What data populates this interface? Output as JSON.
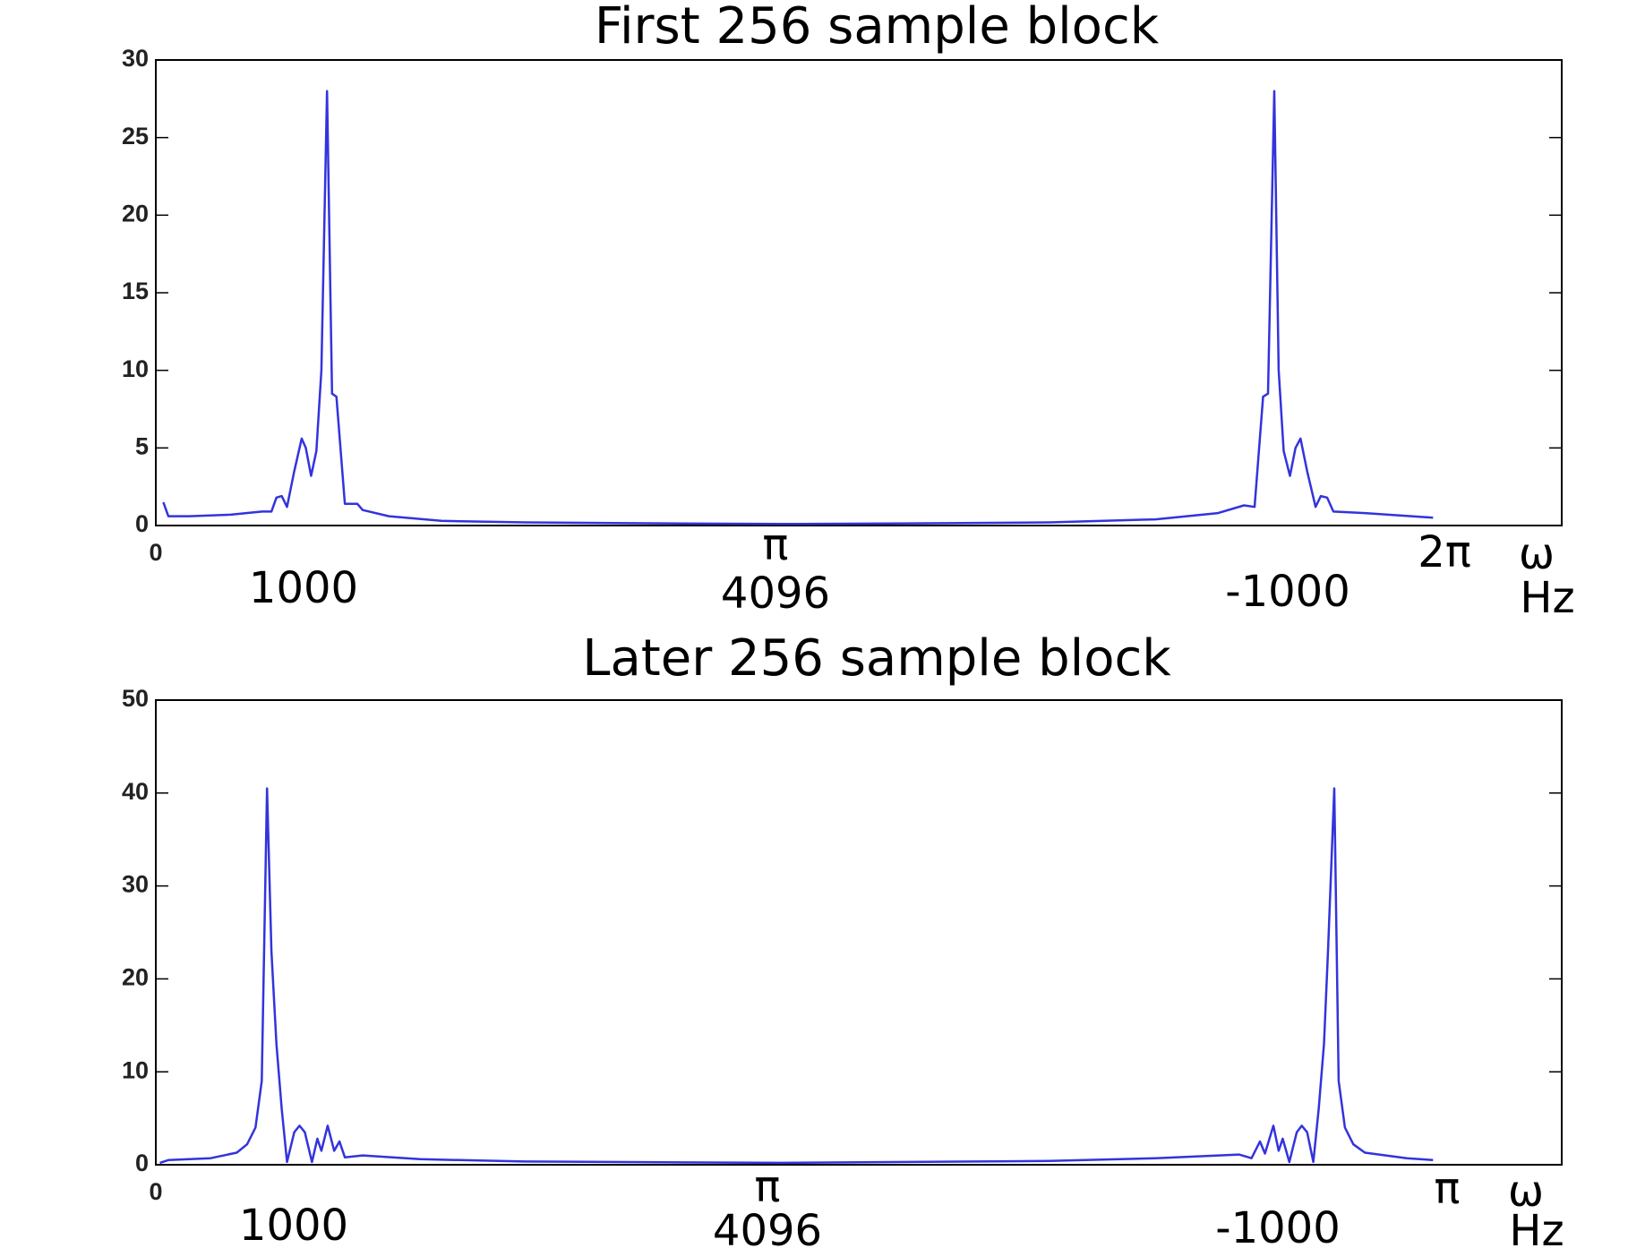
{
  "chart_data": [
    {
      "type": "line",
      "title": "First 256 sample block",
      "color": "#3333dd",
      "xlim": [
        0,
        450
      ],
      "xticks": [
        0
      ],
      "ylim": [
        0,
        30
      ],
      "yticks": [
        0,
        5,
        10,
        15,
        20,
        25,
        30
      ],
      "x": [
        2.4,
        4,
        10.7,
        24,
        34,
        37,
        38.6,
        40.3,
        42,
        44.3,
        46.7,
        48,
        49.7,
        51.4,
        53,
        54.8,
        56.4,
        57.8,
        60.5,
        64.5,
        66.2,
        74.6,
        91.4,
        118,
        152,
        200,
        252.6,
        286,
        320,
        340,
        348.3,
        351.7,
        354.4,
        356,
        358,
        359.4,
        361,
        363,
        364.8,
        366.4,
        368.5,
        371.2,
        372.9,
        374.9,
        376.9,
        387,
        408.8
      ],
      "values": [
        1.5,
        0.6,
        0.6,
        0.7,
        0.9,
        0.9,
        1.8,
        1.9,
        1.2,
        3.5,
        5.6,
        5.0,
        3.2,
        4.8,
        10,
        28,
        8.5,
        8.3,
        1.4,
        1.4,
        1.0,
        0.6,
        0.3,
        0.2,
        0.15,
        0.1,
        0.15,
        0.2,
        0.4,
        0.8,
        1.3,
        1.2,
        8.3,
        8.5,
        28,
        10,
        4.8,
        3.2,
        5.0,
        5.6,
        3.5,
        1.2,
        1.9,
        1.8,
        0.9,
        0.8,
        0.5
      ],
      "annotations": [
        "π",
        "4096",
        "1000",
        "-1000",
        "2π",
        "ω",
        "Hz"
      ]
    },
    {
      "type": "line",
      "title": "Later 256 sample block",
      "color": "#3333dd",
      "xlim": [
        0,
        450
      ],
      "xticks": [
        0
      ],
      "ylim": [
        0,
        50
      ],
      "yticks": [
        0,
        10,
        20,
        30,
        40,
        50
      ],
      "x": [
        1.3,
        4,
        17.5,
        25.9,
        29.2,
        31.9,
        33.9,
        35.6,
        37,
        38.6,
        40.3,
        42,
        44.3,
        46,
        47.7,
        50,
        51.7,
        53,
        55,
        57.1,
        58.8,
        60.5,
        66.2,
        84.6,
        118,
        200,
        286,
        320,
        346.7,
        350.7,
        353.4,
        355,
        357.7,
        359.4,
        360.7,
        362.8,
        365.2,
        366.8,
        368.5,
        370.5,
        372.2,
        373.9,
        375.2,
        377.2,
        378.6,
        380.6,
        383.3,
        387,
        400.4,
        408.8
      ],
      "values": [
        0.2,
        0.5,
        0.7,
        1.3,
        2.2,
        4,
        9,
        40.5,
        23,
        13,
        6,
        0.3,
        3.5,
        4.2,
        3.5,
        0.3,
        2.8,
        1.5,
        4.2,
        1.5,
        2.5,
        0.8,
        1.0,
        0.6,
        0.35,
        0.2,
        0.4,
        0.7,
        1.1,
        0.7,
        2.5,
        1.2,
        4.2,
        1.5,
        2.8,
        0.3,
        3.5,
        4.2,
        3.5,
        0.3,
        6,
        13,
        23,
        40.5,
        9,
        4,
        2.2,
        1.3,
        0.7,
        0.5
      ],
      "annotations": [
        "π",
        "4096",
        "1000",
        "-1000",
        "π",
        "ω",
        "Hz"
      ]
    }
  ]
}
